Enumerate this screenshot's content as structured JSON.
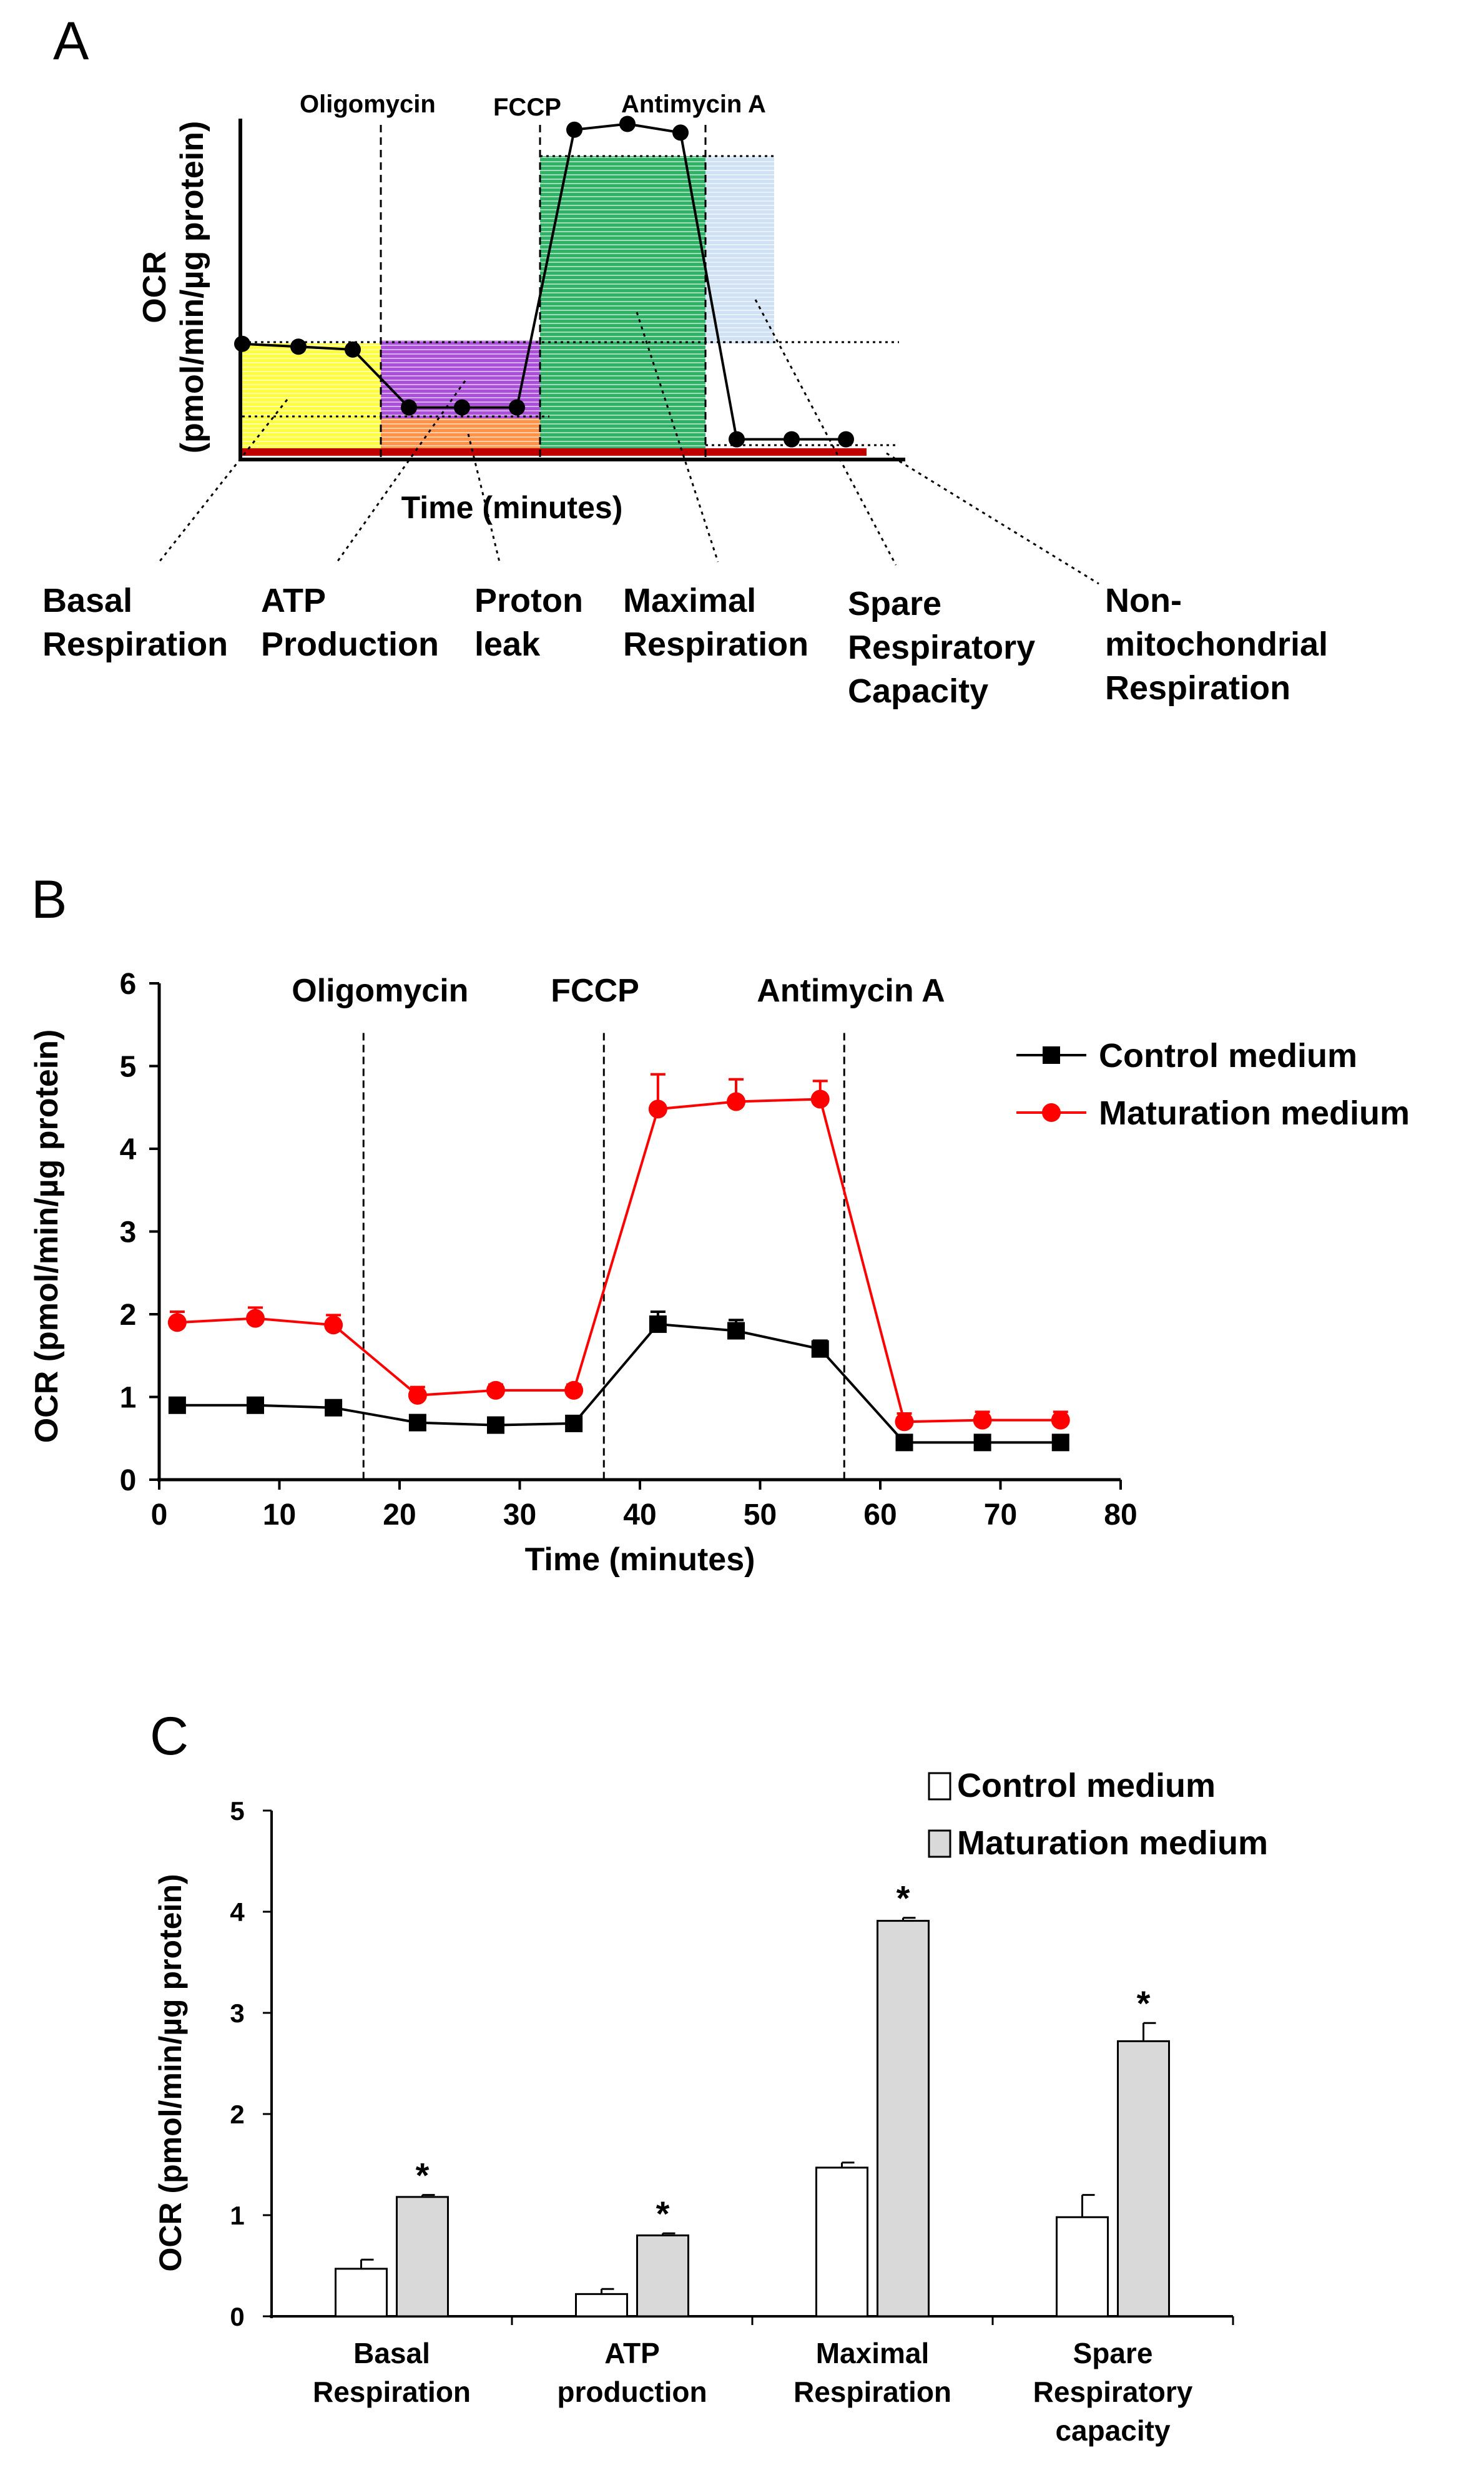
{
  "panels": {
    "A": {
      "letter": "A",
      "ylabel_line1": "OCR",
      "ylabel_line2": "(pmol/min/µg protein)",
      "xlabel": "Time (minutes)",
      "injections": [
        "Oligomycin",
        "FCCP",
        "Antimycin  A"
      ],
      "regions": [
        {
          "key": "basal",
          "lines": [
            "Basal",
            "Respiration"
          ],
          "color": "#ffff00"
        },
        {
          "key": "atp",
          "lines": [
            "ATP",
            "Production"
          ],
          "color": "#9b30d0"
        },
        {
          "key": "leak",
          "lines": [
            "Proton",
            "leak"
          ],
          "color": "#ff7f27"
        },
        {
          "key": "maximal",
          "lines": [
            "Maximal",
            "Respiration"
          ],
          "color": "#1aaa55"
        },
        {
          "key": "spare",
          "lines": [
            "Spare",
            "Respiratory",
            "Capacity"
          ],
          "color": "#a8c8e8"
        },
        {
          "key": "nonmito",
          "lines": [
            "Non-",
            "mitochondrial",
            "Respiration"
          ],
          "color": "#c00000"
        }
      ]
    },
    "B": {
      "letter": "B",
      "injections": [
        "Oligomycin",
        "FCCP",
        "Antimycin  A"
      ]
    },
    "C": {
      "letter": "C"
    }
  },
  "chart_data": [
    {
      "panel": "A",
      "type": "line",
      "title": "",
      "xlabel": "Time (minutes)",
      "ylabel": "OCR (pmol/min/µg protein)",
      "note": "Schematic: no axis values shown",
      "injections": [
        "Oligomycin",
        "FCCP",
        "Antimycin  A"
      ],
      "series": [
        {
          "name": "OCR",
          "values": [
            2.0,
            1.95,
            1.9,
            0.9,
            0.9,
            0.9,
            5.7,
            5.8,
            5.65,
            0.35,
            0.35,
            0.35
          ]
        }
      ],
      "ylim": [
        0,
        6
      ]
    },
    {
      "panel": "B",
      "type": "line",
      "title": "",
      "xlabel": "Time (minutes)",
      "ylabel": "OCR (pmol/min/µg protein)",
      "xlim": [
        0,
        80
      ],
      "ylim": [
        0,
        6
      ],
      "xticks": [
        0,
        10,
        20,
        30,
        40,
        50,
        60,
        70,
        80
      ],
      "yticks": [
        0,
        1,
        2,
        3,
        4,
        5,
        6
      ],
      "injections": [
        {
          "label": "Oligomycin",
          "x": 17
        },
        {
          "label": "FCCP",
          "x": 37
        },
        {
          "label": "Antimycin  A",
          "x": 57
        }
      ],
      "x": [
        1.5,
        8,
        14.5,
        21.5,
        28,
        34.5,
        41.5,
        48,
        55,
        62,
        68.5,
        75
      ],
      "series": [
        {
          "name": "Control medium",
          "color": "#000000",
          "marker": "square",
          "values": [
            0.9,
            0.9,
            0.87,
            0.69,
            0.66,
            0.68,
            1.88,
            1.8,
            1.58,
            0.45,
            0.45,
            0.45
          ],
          "errors": [
            0.05,
            0.05,
            0.05,
            0.04,
            0.04,
            0.04,
            0.15,
            0.13,
            0.1,
            0.03,
            0.03,
            0.03
          ]
        },
        {
          "name": "Maturation medium",
          "color": "#ff0000",
          "marker": "circle",
          "values": [
            1.9,
            1.95,
            1.87,
            1.02,
            1.08,
            1.08,
            4.48,
            4.57,
            4.6,
            0.7,
            0.72,
            0.72
          ],
          "errors": [
            0.13,
            0.13,
            0.12,
            0.1,
            0.07,
            0.07,
            0.42,
            0.27,
            0.22,
            0.1,
            0.1,
            0.1
          ]
        }
      ],
      "legend": "top-right"
    },
    {
      "panel": "C",
      "type": "bar",
      "title": "",
      "xlabel": "",
      "ylabel": "OCR (pmol/min/µg protein)",
      "ylim": [
        0,
        5
      ],
      "yticks": [
        0,
        1,
        2,
        3,
        4,
        5
      ],
      "categories": [
        [
          "Basal",
          "Respiration"
        ],
        [
          "ATP",
          "production"
        ],
        [
          "Maximal",
          "Respiration"
        ],
        [
          "Spare",
          "Respiratory",
          "capacity"
        ]
      ],
      "significance": [
        "*",
        "*",
        "*",
        "*"
      ],
      "series": [
        {
          "name": "Control medium",
          "color": "#ffffff",
          "values": [
            0.47,
            0.22,
            1.47,
            0.98
          ],
          "errors": [
            0.09,
            0.05,
            0.05,
            0.22
          ]
        },
        {
          "name": "Maturation medium",
          "color": "#d9d9d9",
          "values": [
            1.18,
            0.8,
            3.91,
            2.72
          ],
          "errors": [
            0.02,
            0.02,
            0.03,
            0.18
          ]
        }
      ],
      "legend": "top-right"
    }
  ]
}
